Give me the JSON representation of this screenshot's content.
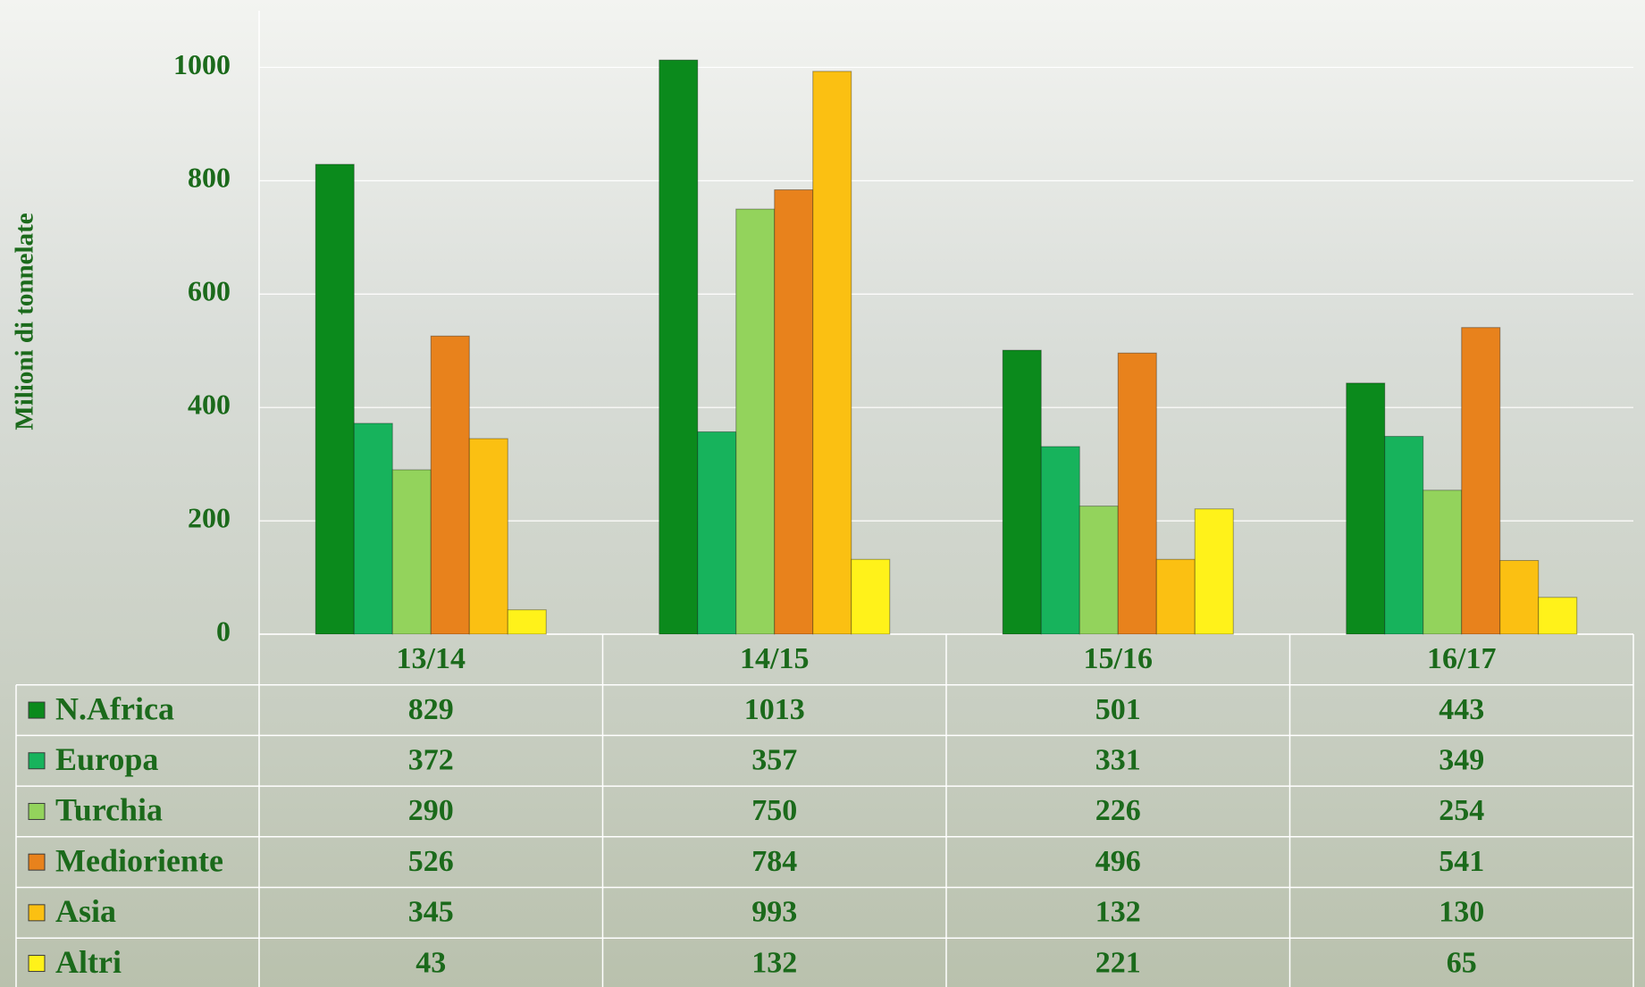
{
  "chart_data": {
    "type": "bar",
    "y_label": "Milioni di tonnelate",
    "categories": [
      "13/14",
      "14/15",
      "15/16",
      "16/17"
    ],
    "series": [
      {
        "name": "N.Africa",
        "color": "#0b8a1c",
        "values": [
          829,
          1013,
          501,
          443
        ]
      },
      {
        "name": "Europa",
        "color": "#17b35c",
        "values": [
          372,
          357,
          331,
          349
        ]
      },
      {
        "name": "Turchia",
        "color": "#93d35c",
        "values": [
          290,
          750,
          226,
          254
        ]
      },
      {
        "name": "Medioriente",
        "color": "#e8821c",
        "values": [
          526,
          784,
          496,
          541
        ]
      },
      {
        "name": "Asia",
        "color": "#fbc012",
        "values": [
          345,
          993,
          132,
          130
        ]
      },
      {
        "name": "Altri",
        "color": "#fff21a",
        "values": [
          43,
          132,
          221,
          65
        ]
      }
    ],
    "ylim": [
      0,
      1100
    ],
    "yticks": [
      0,
      200,
      400,
      600,
      800,
      1000
    ],
    "grid": true
  }
}
